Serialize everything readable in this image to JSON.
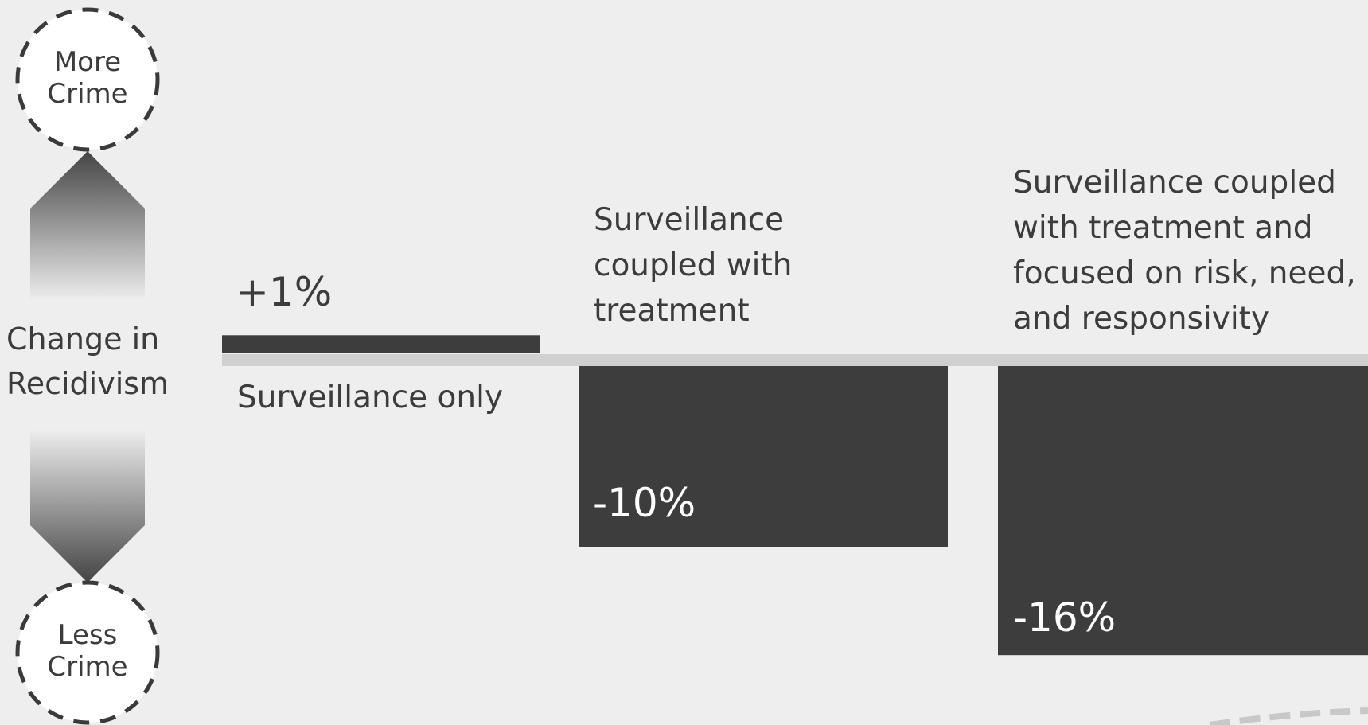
{
  "indicator": {
    "top_label_line1": "More",
    "top_label_line2": "Crime",
    "axis_line1": "Change in",
    "axis_line2": "Recidivism",
    "bottom_label_line1": "Less",
    "bottom_label_line2": "Crime"
  },
  "colors": {
    "background": "#eeeeee",
    "bar": "#3d3d3d",
    "baseline": "#d0d0d0",
    "text": "#3c3c3c",
    "negative_value_text": "#ffffff"
  },
  "chart_data": {
    "type": "bar",
    "categories": [
      "Surveillance only",
      "Surveillance coupled with treatment",
      "Surveillance coupled with treatment and focused on risk, need, and responsivity"
    ],
    "values": [
      1,
      -10,
      -16
    ],
    "value_labels": [
      "+1%",
      "-10%",
      "-16%"
    ],
    "category_label_lines": [
      [
        "Surveillance only"
      ],
      [
        "Surveillance",
        "coupled with",
        "treatment"
      ],
      [
        "Surveillance coupled",
        "with treatment and",
        "focused on risk, need,",
        "and responsivity"
      ]
    ],
    "title": "",
    "xlabel": "",
    "ylabel": "Change in Recidivism",
    "unit": "%",
    "ylim": [
      -16,
      1
    ],
    "grid": false,
    "legend": "none"
  }
}
